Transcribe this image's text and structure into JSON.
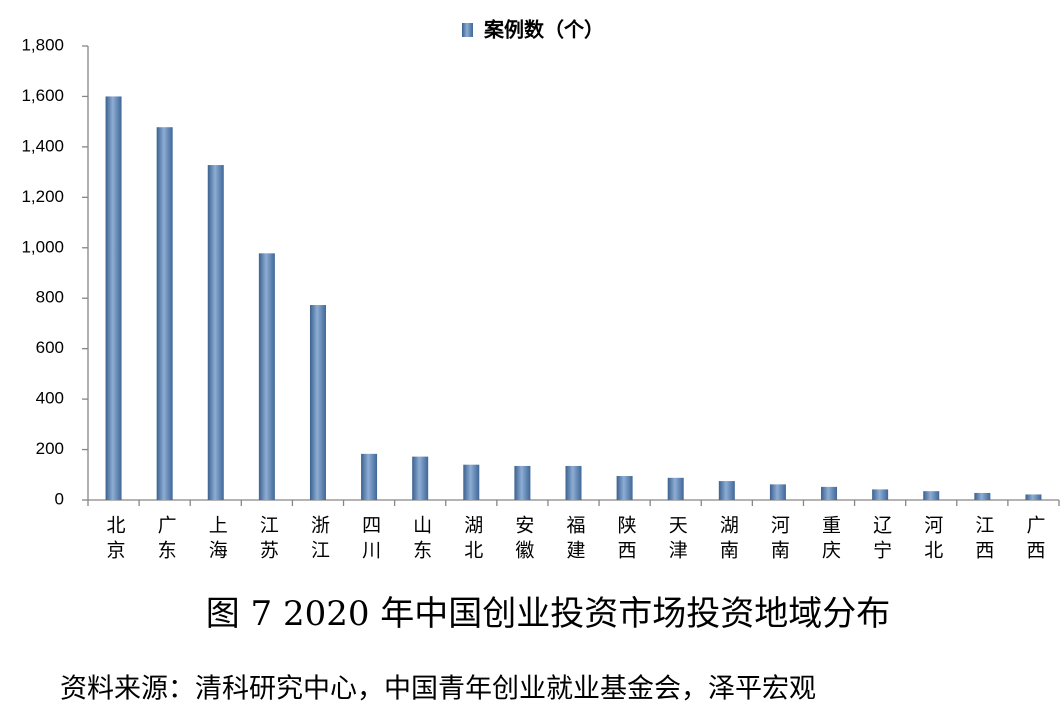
{
  "chart_data": {
    "type": "bar",
    "legend_label": "案例数（个）",
    "title": "图 7 2020 年中国创业投资市场投资地域分布",
    "source": "资料来源：清科研究中心，中国青年创业就业基金会，泽平宏观",
    "categories": [
      "北京",
      "广东",
      "上海",
      "江苏",
      "浙江",
      "四川",
      "山东",
      "湖北",
      "安徽",
      "福建",
      "陕西",
      "天津",
      "湖南",
      "河南",
      "重庆",
      "辽宁",
      "河北",
      "江西",
      "广西"
    ],
    "values": [
      1600,
      1478,
      1328,
      978,
      773,
      183,
      172,
      140,
      135,
      135,
      95,
      88,
      75,
      62,
      52,
      42,
      35,
      28,
      22
    ],
    "color": "#4f81bd",
    "ylim": [
      0,
      1800
    ],
    "yticks": [
      0,
      200,
      400,
      600,
      800,
      {
        "value": 1000,
        "label": "1,000"
      },
      {
        "value": 1200,
        "label": "1,200"
      },
      {
        "value": 1400,
        "label": "1,400"
      },
      {
        "value": 1600,
        "label": "1,600"
      },
      {
        "value": 1800,
        "label": "1,800"
      }
    ],
    "grid": false
  }
}
